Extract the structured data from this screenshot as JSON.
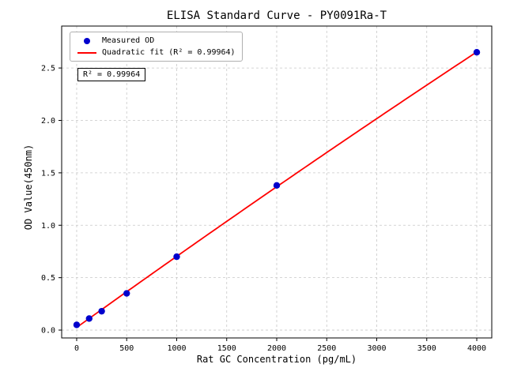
{
  "title": "ELISA Standard Curve - PY0091Ra-T",
  "chart_data": {
    "type": "scatter",
    "title": "ELISA Standard Curve - PY0091Ra-T",
    "xlabel": "Rat GC Concentration (pg/mL)",
    "ylabel": "OD Value(450nm)",
    "x": [
      0,
      125,
      250,
      500,
      1000,
      2000,
      4000
    ],
    "series": [
      {
        "name": "Measured OD",
        "values": [
          0.05,
          0.11,
          0.18,
          0.35,
          0.7,
          1.38,
          2.65
        ]
      }
    ],
    "fit": {
      "kind": "quadratic",
      "r_squared": 0.99964,
      "label": "Quadratic fit (R² = 0.99964)"
    },
    "x_ticks": [
      0,
      500,
      1000,
      1500,
      2000,
      2500,
      3000,
      3500,
      4000
    ],
    "y_ticks": [
      "0.0",
      "0.5",
      "1.0",
      "1.5",
      "2.0",
      "2.5"
    ],
    "xlim": [
      -150,
      4150
    ],
    "ylim": [
      -0.075,
      2.9
    ],
    "grid": true,
    "legend_position": "upper-left",
    "legend": [
      {
        "label": "Measured OD",
        "marker": "dot",
        "color": "#0000cd"
      },
      {
        "label": "Quadratic fit (R² = 0.99964)",
        "marker": "line",
        "color": "#ff0000"
      }
    ],
    "annotation": "R² = 0.99964",
    "colors": {
      "points": "#0000cd",
      "fit_line": "#ff0000",
      "grid": "#c8c8c8",
      "axis": "#000000"
    }
  }
}
